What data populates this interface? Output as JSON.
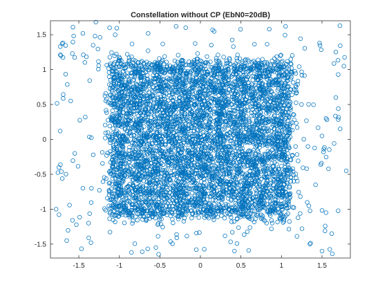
{
  "chart_data": {
    "type": "scatter",
    "title": "Constellation without CP (EbN0=20dB)",
    "xlabel": "",
    "ylabel": "",
    "xlim": [
      -1.85,
      1.85
    ],
    "ylim": [
      -1.7,
      1.7
    ],
    "x_ticks": [
      -1.5,
      -1,
      -0.5,
      0,
      0.5,
      1,
      1.5
    ],
    "x_tick_labels": [
      "-1.5",
      "-1",
      "-0.5",
      "0",
      "0.5",
      "1",
      "1.5"
    ],
    "y_ticks": [
      -1.5,
      -1,
      -0.5,
      0,
      0.5,
      1,
      1.5
    ],
    "y_tick_labels": [
      "-1.5",
      "-1",
      "-0.5",
      "0",
      "0.5",
      "1",
      "1.5"
    ],
    "grid": false,
    "legend": "none",
    "marker": "open circle",
    "color": "#0072BD",
    "series": [
      {
        "points_description": "dense cloud of received symbols, mostly within -1.15..1.15 on both axes, with sparse outliers up to about ±1.8",
        "sample_points": [
          [
            -1.0,
            -1.0
          ],
          [
            -1.0,
            -0.75
          ],
          [
            -1.0,
            -0.5
          ],
          [
            -1.0,
            -0.25
          ],
          [
            -1.0,
            0.0
          ],
          [
            -1.0,
            0.25
          ],
          [
            -1.0,
            0.5
          ],
          [
            -1.0,
            0.75
          ],
          [
            -1.0,
            1.0
          ],
          [
            -0.75,
            -1.0
          ],
          [
            -0.75,
            -0.75
          ],
          [
            -0.75,
            -0.5
          ],
          [
            -0.75,
            -0.25
          ],
          [
            -0.75,
            0.0
          ],
          [
            -0.75,
            0.25
          ],
          [
            -0.75,
            0.5
          ],
          [
            -0.75,
            0.75
          ],
          [
            -0.75,
            1.0
          ],
          [
            -0.5,
            -1.0
          ],
          [
            -0.5,
            -0.75
          ],
          [
            -0.5,
            -0.5
          ],
          [
            -0.5,
            -0.25
          ],
          [
            -0.5,
            0.0
          ],
          [
            -0.5,
            0.25
          ],
          [
            -0.5,
            0.5
          ],
          [
            -0.5,
            0.75
          ],
          [
            -0.5,
            1.0
          ],
          [
            -0.25,
            -1.0
          ],
          [
            -0.25,
            -0.75
          ],
          [
            -0.25,
            -0.5
          ],
          [
            -0.25,
            -0.25
          ],
          [
            -0.25,
            0.0
          ],
          [
            -0.25,
            0.25
          ],
          [
            -0.25,
            0.5
          ],
          [
            -0.25,
            0.75
          ],
          [
            -0.25,
            1.0
          ],
          [
            0.0,
            -1.0
          ],
          [
            0.0,
            -0.75
          ],
          [
            0.0,
            -0.5
          ],
          [
            0.0,
            -0.25
          ],
          [
            0.0,
            0.0
          ],
          [
            0.0,
            0.25
          ],
          [
            0.0,
            0.5
          ],
          [
            0.0,
            0.75
          ],
          [
            0.0,
            1.0
          ],
          [
            0.25,
            -1.0
          ],
          [
            0.25,
            -0.75
          ],
          [
            0.25,
            -0.5
          ],
          [
            0.25,
            -0.25
          ],
          [
            0.25,
            0.0
          ],
          [
            0.25,
            0.25
          ],
          [
            0.25,
            0.5
          ],
          [
            0.25,
            0.75
          ],
          [
            0.25,
            1.0
          ],
          [
            0.5,
            -1.0
          ],
          [
            0.5,
            -0.75
          ],
          [
            0.5,
            -0.5
          ],
          [
            0.5,
            -0.25
          ],
          [
            0.5,
            0.0
          ],
          [
            0.5,
            0.25
          ],
          [
            0.5,
            0.5
          ],
          [
            0.5,
            0.75
          ],
          [
            0.5,
            1.0
          ],
          [
            0.75,
            -1.0
          ],
          [
            0.75,
            -0.75
          ],
          [
            0.75,
            -0.5
          ],
          [
            0.75,
            -0.25
          ],
          [
            0.75,
            0.0
          ],
          [
            0.75,
            0.25
          ],
          [
            0.75,
            0.5
          ],
          [
            0.75,
            0.75
          ],
          [
            0.75,
            1.0
          ],
          [
            1.0,
            -1.0
          ],
          [
            1.0,
            -0.75
          ],
          [
            1.0,
            -0.5
          ],
          [
            1.0,
            -0.25
          ],
          [
            1.0,
            0.0
          ],
          [
            1.0,
            0.25
          ],
          [
            1.0,
            0.5
          ],
          [
            1.0,
            0.75
          ],
          [
            1.0,
            1.0
          ],
          [
            -1.73,
            0.12
          ],
          [
            -1.78,
            -1.0
          ],
          [
            -1.72,
            1.2
          ],
          [
            -1.65,
            -1.45
          ],
          [
            -1.58,
            1.23
          ],
          [
            -1.45,
            1.52
          ],
          [
            -1.35,
            -1.48
          ],
          [
            -1.3,
            1.48
          ],
          [
            -1.38,
            -1.2
          ],
          [
            -1.12,
            1.6
          ],
          [
            -0.85,
            -1.62
          ],
          [
            -0.3,
            1.62
          ],
          [
            0.42,
            -1.6
          ],
          [
            1.05,
            1.62
          ],
          [
            1.35,
            -1.5
          ],
          [
            1.47,
            1.38
          ],
          [
            1.55,
            -1.05
          ],
          [
            1.62,
            -1.35
          ],
          [
            1.7,
            0.93
          ],
          [
            1.77,
            1.05
          ],
          [
            1.8,
            -0.45
          ],
          [
            1.67,
            0.6
          ],
          [
            1.55,
            0.3
          ],
          [
            -1.55,
            -0.2
          ],
          [
            -1.6,
            0.55
          ],
          [
            1.42,
            -0.65
          ],
          [
            -1.45,
            -0.7
          ],
          [
            0.85,
            1.58
          ],
          [
            -0.55,
            -1.55
          ],
          [
            1.72,
            1.63
          ],
          [
            -1.29,
            1.68
          ],
          [
            0.15,
            1.57
          ],
          [
            -0.05,
            -1.58
          ],
          [
            1.5,
            0.05
          ],
          [
            -1.42,
            0.32
          ]
        ]
      }
    ]
  }
}
